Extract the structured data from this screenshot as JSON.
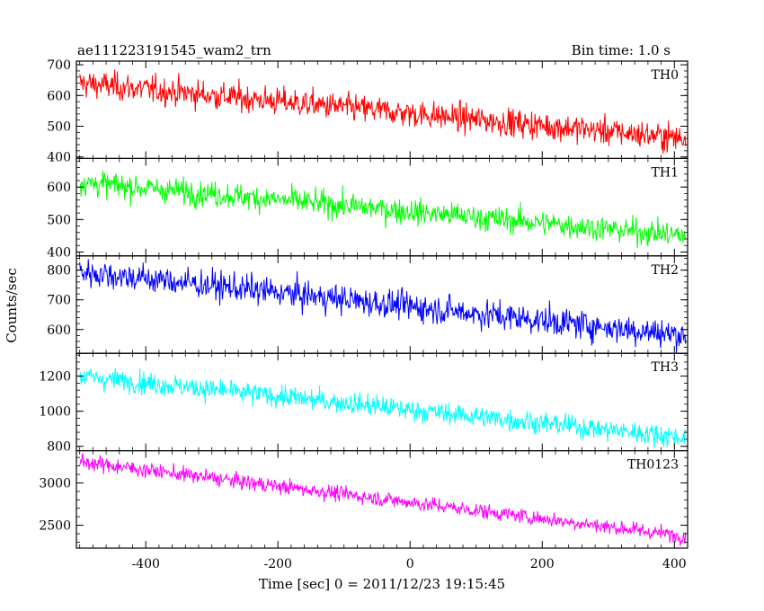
{
  "header": {
    "obs_id": "ae111223191545_wam2_trn",
    "bin_time": "Bin time: 1.0 s"
  },
  "axes": {
    "xlabel": "Time [sec] 0 = 2011/12/23 19:15:45",
    "ylabel": "Counts/sec"
  },
  "chart_data": {
    "type": "line",
    "x_range": [
      -505,
      420
    ],
    "x_ticks": [
      -400,
      -200,
      0,
      200,
      400
    ],
    "bin_time_s": 1.0,
    "panels": [
      {
        "name": "TH0",
        "color": "#ff0000",
        "ylim": [
          395,
          712
        ],
        "yticks": [
          400,
          500,
          600,
          700
        ],
        "start_mean": 640,
        "end_mean": 460,
        "noise": 28
      },
      {
        "name": "TH1",
        "color": "#00ff00",
        "ylim": [
          388,
          688
        ],
        "yticks": [
          400,
          500,
          600
        ],
        "start_mean": 615,
        "end_mean": 450,
        "noise": 24
      },
      {
        "name": "TH2",
        "color": "#0000ff",
        "ylim": [
          520,
          848
        ],
        "yticks": [
          600,
          700,
          800
        ],
        "start_mean": 795,
        "end_mean": 580,
        "noise": 30
      },
      {
        "name": "TH3",
        "color": "#00ffff",
        "ylim": [
          775,
          1330
        ],
        "yticks": [
          800,
          1000,
          1200
        ],
        "start_mean": 1200,
        "end_mean": 850,
        "noise": 38
      },
      {
        "name": "TH0123",
        "color": "#ff00ff",
        "ylim": [
          2230,
          3380
        ],
        "yticks": [
          2500,
          3000
        ],
        "start_mean": 3250,
        "end_mean": 2370,
        "noise": 55
      }
    ]
  }
}
